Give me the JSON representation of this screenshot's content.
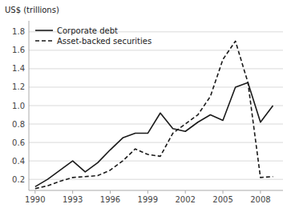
{
  "chart_data": {
    "type": "line",
    "y_label": "US$ (trillions)",
    "x": [
      1990,
      1991,
      1992,
      1993,
      1994,
      1995,
      1996,
      1997,
      1998,
      1999,
      2000,
      2001,
      2002,
      2003,
      2004,
      2005,
      2006,
      2007,
      2008,
      2009
    ],
    "series": [
      {
        "name": "Corporate debt",
        "color": "#1a1a1a",
        "line_style": "solid",
        "values": [
          0.12,
          0.2,
          0.3,
          0.4,
          0.28,
          0.38,
          0.52,
          0.65,
          0.7,
          0.7,
          0.92,
          0.75,
          0.72,
          0.82,
          0.9,
          0.84,
          1.2,
          1.25,
          0.82,
          1.0
        ]
      },
      {
        "name": "Asset-backed securities",
        "color": "#1a1a1a",
        "line_style": "dashed",
        "values": [
          0.1,
          0.13,
          0.18,
          0.22,
          0.23,
          0.24,
          0.3,
          0.4,
          0.53,
          0.47,
          0.45,
          0.7,
          0.8,
          0.9,
          1.1,
          1.5,
          1.7,
          1.25,
          0.22,
          0.23
        ]
      }
    ],
    "xlim": [
      1989.5,
      2009.8
    ],
    "xticks": [
      1990,
      1993,
      1996,
      1999,
      2002,
      2005,
      2008
    ],
    "ylim": [
      0.08,
      1.92
    ],
    "yticks": [
      0.2,
      0.4,
      0.6,
      0.8,
      {
        "value": 1.0,
        "label": "1.0"
      },
      1.2,
      1.4,
      1.6,
      1.8
    ],
    "grid": true,
    "legend": "upper left"
  }
}
